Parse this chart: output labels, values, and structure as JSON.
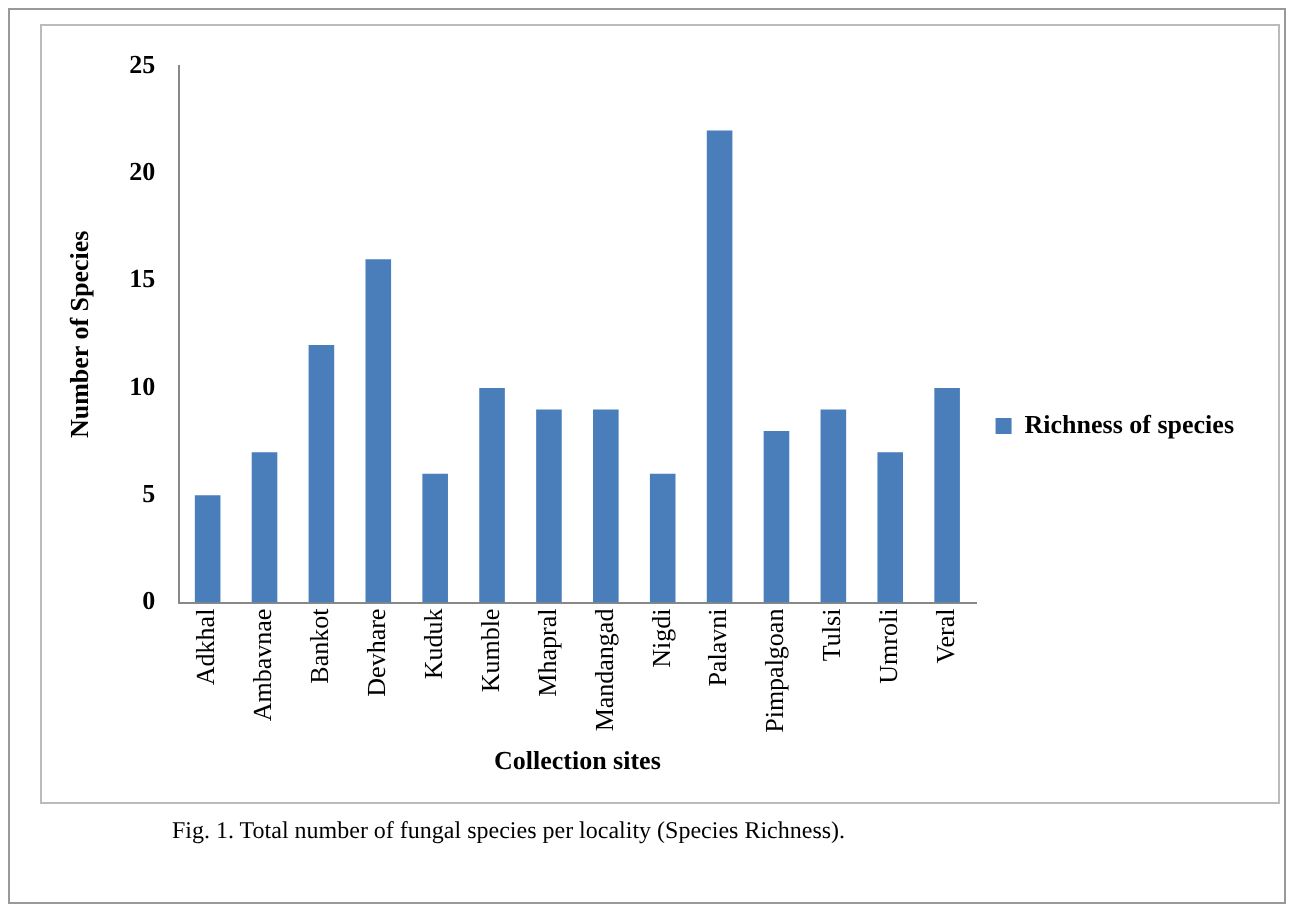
{
  "chart_data": {
    "type": "bar",
    "xlabel": "Collection sites",
    "ylabel": "Number of Species",
    "categories": [
      "Adkhal",
      "Ambavnae",
      "Bankot",
      "Devhare",
      "Kuduk",
      "Kumble",
      "Mhapral",
      "Mandangad",
      "Nigdi",
      "Palavni",
      "Pimpalgoan",
      "Tulsi",
      "Umroli",
      "Veral"
    ],
    "series": [
      {
        "name": "Richness of species",
        "color": "#4a7ebb",
        "values": [
          5,
          7,
          12,
          16,
          6,
          10,
          9,
          9,
          6,
          22,
          8,
          9,
          7,
          10
        ]
      }
    ],
    "ylim": [
      0,
      25
    ],
    "yticks": [
      0,
      5,
      10,
      15,
      20,
      25
    ],
    "grid": false,
    "legend": "right",
    "annotations": [
      "Fig. 1. Total number of fungal species per locality (Species Richness)."
    ]
  }
}
